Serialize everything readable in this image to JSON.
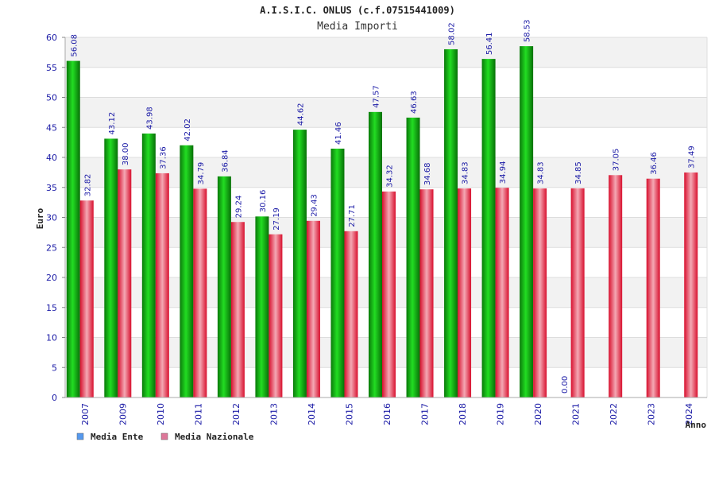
{
  "chart_data": {
    "type": "bar",
    "title": "A.I.S.I.C. ONLUS (c.f.07515441009)",
    "subtitle": "Media Importi",
    "xlabel": "Anno",
    "ylabel": "Euro",
    "ylim": [
      0,
      60
    ],
    "yticks": [
      "0",
      "5",
      "10",
      "15",
      "20",
      "25",
      "30",
      "35",
      "40",
      "45",
      "50",
      "55",
      "60"
    ],
    "grid": true,
    "legend_position": "bottom-left",
    "categories": [
      "2007",
      "2009",
      "2010",
      "2011",
      "2012",
      "2013",
      "2014",
      "2015",
      "2016",
      "2017",
      "2018",
      "2019",
      "2020",
      "2021",
      "2022",
      "2023",
      "2024"
    ],
    "series": [
      {
        "name": "Media Ente",
        "color": "#11aa11",
        "legend_color": "#5599ee",
        "values": [
          56.08,
          43.12,
          43.98,
          42.02,
          36.84,
          30.16,
          44.62,
          41.46,
          47.57,
          46.63,
          58.02,
          56.41,
          58.53,
          0.0,
          null,
          null,
          null
        ],
        "labels": [
          "56.08",
          "43.12",
          "43.98",
          "42.02",
          "36.84",
          "30.16",
          "44.62",
          "41.46",
          "47.57",
          "46.63",
          "58.02",
          "56.41",
          "58.53",
          "0.00",
          "",
          "",
          ""
        ]
      },
      {
        "name": "Media Nazionale",
        "color": "#e8304a",
        "legend_color": "#dd7799",
        "values": [
          32.82,
          38.0,
          37.36,
          34.79,
          29.24,
          27.19,
          29.43,
          27.71,
          34.32,
          34.68,
          34.83,
          34.94,
          34.83,
          34.85,
          37.05,
          36.46,
          37.49
        ],
        "labels": [
          "32.82",
          "38.00",
          "37.36",
          "34.79",
          "29.24",
          "27.19",
          "29.43",
          "27.71",
          "34.32",
          "34.68",
          "34.83",
          "34.94",
          "34.83",
          "34.85",
          "37.05",
          "36.46",
          "37.49"
        ]
      }
    ]
  }
}
